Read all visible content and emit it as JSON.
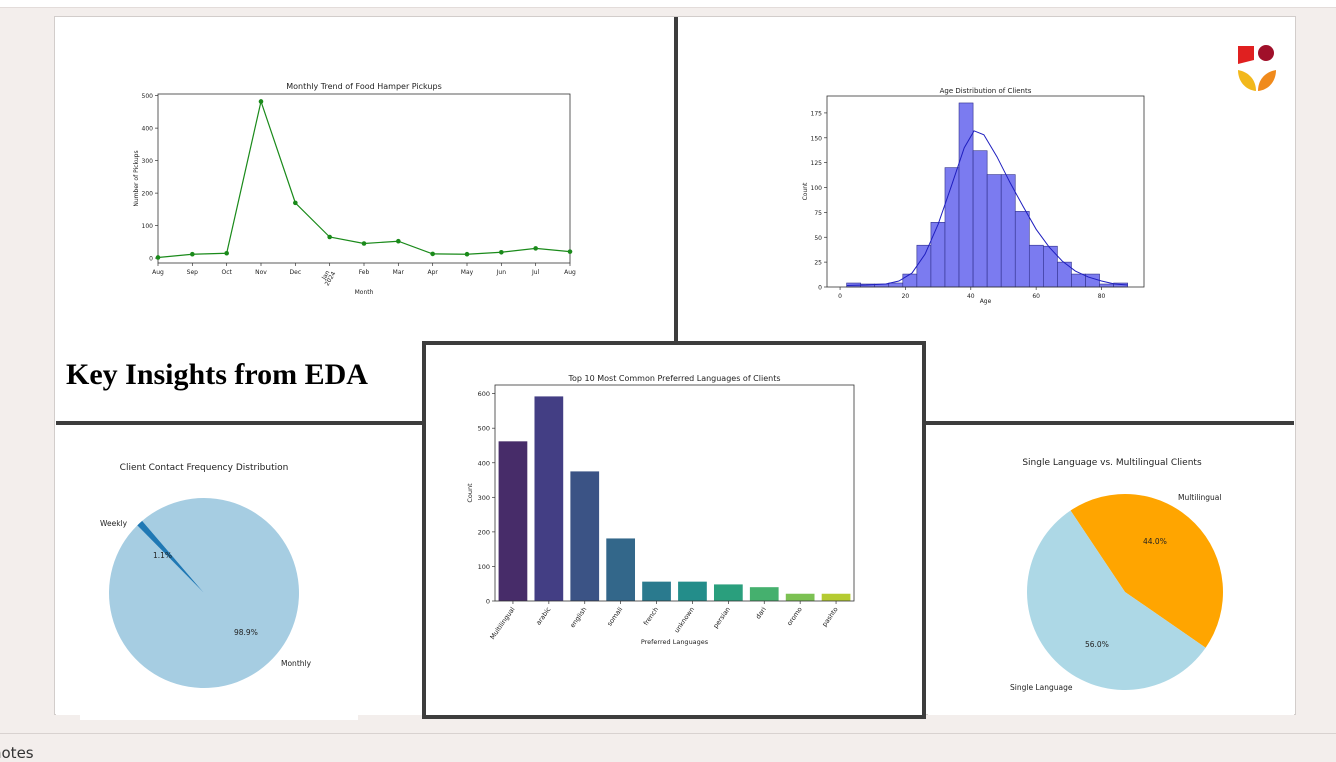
{
  "slide": {
    "heading": "Key Insights from EDA",
    "notes_label": "notes"
  },
  "colors": {
    "line_green": "#1a8a1a",
    "hist_fill": "#7b7bf0",
    "hist_edge": "#2f2f8a",
    "kde_line": "#1f1fbf",
    "pie_light_blue": "#a6cde2",
    "pie_dark_blue": "#1f78b4",
    "pie_orange": "#ffa500",
    "pie_lightblue2": "#add8e6"
  },
  "chart_data": [
    {
      "id": "pickups",
      "type": "line",
      "title": "Monthly Trend of Food Hamper Pickups",
      "xlabel": "Month",
      "ylabel": "Number of Pickups",
      "x": [
        "Aug",
        "Sep",
        "Oct",
        "Nov",
        "Dec",
        "Jan 2024",
        "Feb",
        "Mar",
        "Apr",
        "May",
        "Jun",
        "Jul",
        "Aug"
      ],
      "tick_labels": [
        "Aug",
        "Sep",
        "Oct",
        "Nov",
        "Dec",
        "Jan",
        "Feb",
        "Mar",
        "Apr",
        "May",
        "Jun",
        "Jul",
        "Aug"
      ],
      "tick_sublabel": "2024",
      "values": [
        2,
        12,
        15,
        482,
        170,
        65,
        45,
        52,
        13,
        12,
        18,
        30,
        20
      ],
      "ylim": [
        -15,
        505
      ],
      "yticks": [
        0,
        100,
        200,
        300,
        400,
        500
      ]
    },
    {
      "id": "age",
      "type": "bar",
      "title": "Age Distribution of Clients",
      "xlabel": "Age",
      "ylabel": "Count",
      "bin_start": 2,
      "bin_width": 4.3,
      "counts": [
        4,
        3,
        3,
        4,
        13,
        42,
        65,
        120,
        185,
        137,
        113,
        113,
        76,
        42,
        41,
        25,
        13,
        13,
        3,
        4
      ],
      "kde": [
        [
          2,
          1.5
        ],
        [
          8,
          2
        ],
        [
          14,
          3
        ],
        [
          18,
          6
        ],
        [
          22,
          14
        ],
        [
          26,
          33
        ],
        [
          30,
          63
        ],
        [
          34,
          101
        ],
        [
          38,
          140
        ],
        [
          41,
          157
        ],
        [
          44,
          153
        ],
        [
          48,
          131
        ],
        [
          52,
          105
        ],
        [
          56,
          81
        ],
        [
          60,
          58
        ],
        [
          64,
          40
        ],
        [
          68,
          26
        ],
        [
          72,
          16
        ],
        [
          76,
          10
        ],
        [
          80,
          6
        ],
        [
          84,
          3
        ],
        [
          88,
          2
        ]
      ],
      "xlim": [
        -4,
        93
      ],
      "ylim": [
        0,
        192
      ],
      "xticks": [
        0,
        20,
        40,
        60,
        80
      ],
      "yticks": [
        0,
        25,
        50,
        75,
        100,
        125,
        150,
        175
      ]
    },
    {
      "id": "contact",
      "type": "pie",
      "title": "Client Contact Frequency Distribution",
      "slices": [
        {
          "label": "Monthly",
          "value": 98.9,
          "pct_text": "98.9%"
        },
        {
          "label": "Weekly",
          "value": 1.1,
          "pct_text": "1.1%"
        }
      ]
    },
    {
      "id": "languages",
      "type": "bar",
      "title": "Top 10 Most Common Preferred Languages of Clients",
      "xlabel": "Preferred Languages",
      "ylabel": "Count",
      "categories": [
        "Multilingual",
        "arabic",
        "english",
        "somali",
        "french",
        "unknown",
        "persian",
        "dari",
        "oromo",
        "pashto"
      ],
      "values": [
        462,
        592,
        375,
        181,
        56,
        56,
        48,
        40,
        21,
        21
      ],
      "ylim": [
        0,
        625
      ],
      "yticks": [
        0,
        100,
        200,
        300,
        400,
        500,
        600
      ]
    },
    {
      "id": "multilingual",
      "type": "pie",
      "title": "Single Language vs. Multilingual Clients",
      "slices": [
        {
          "label": "Multilingual",
          "value": 44.0,
          "pct_text": "44.0%"
        },
        {
          "label": "Single Language",
          "value": 56.0,
          "pct_text": "56.0%"
        }
      ]
    }
  ]
}
